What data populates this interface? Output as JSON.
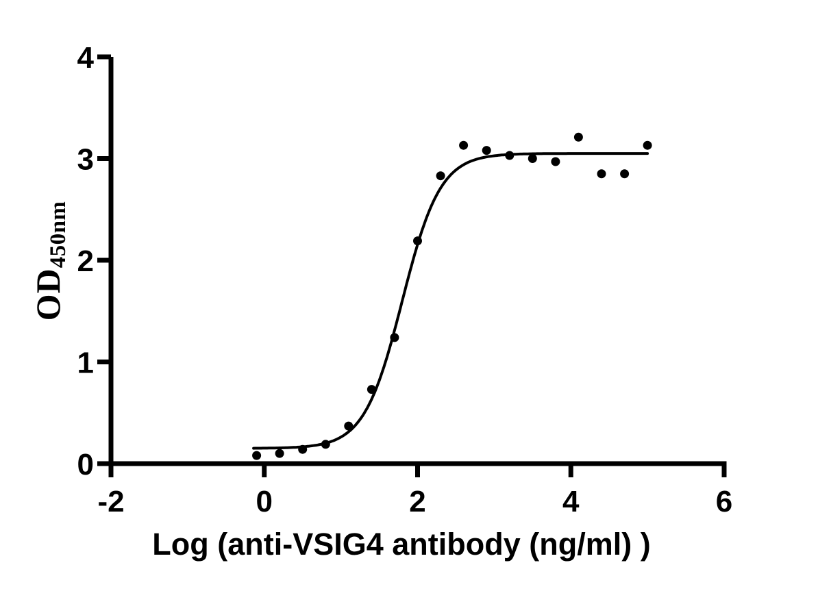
{
  "figure": {
    "background": "#ffffff",
    "ink_color": "#000000",
    "description": "Sigmoidal antibody binding curve (ELISA activity plot)"
  },
  "chart_data": {
    "type": "scatter",
    "subtype": "sigmoidal-dose-response-with-fit",
    "title": "",
    "xlabel": "Log (anti-VSIG4 antibody (ng/ml) )",
    "ylabel": "OD450nm",
    "ylabel_main": "OD",
    "ylabel_sub": "450nm",
    "xlim": [
      -2,
      6
    ],
    "ylim": [
      0,
      4
    ],
    "xticks": [
      -2,
      0,
      2,
      4,
      6
    ],
    "xtick_labels": [
      "-2",
      "0",
      "2",
      "4",
      "6"
    ],
    "yticks": [
      0,
      1,
      2,
      3,
      4
    ],
    "ytick_labels": [
      "0",
      "1",
      "2",
      "3",
      "4"
    ],
    "grid": false,
    "legend": "none",
    "marker_radius_px": 6.5,
    "series": [
      {
        "name": "OD450 measurements",
        "marker": "filled-circle",
        "color": "#000000",
        "x": [
          -0.1,
          0.2,
          0.5,
          0.8,
          1.1,
          1.4,
          1.7,
          2.0,
          2.3,
          2.6,
          2.9,
          3.2,
          3.5,
          3.8,
          4.1,
          4.4,
          4.7,
          5.0
        ],
        "y": [
          0.08,
          0.1,
          0.14,
          0.19,
          0.37,
          0.73,
          1.24,
          2.19,
          2.83,
          3.13,
          3.08,
          3.03,
          3.0,
          2.97,
          3.21,
          2.85,
          2.85,
          3.13
        ]
      }
    ],
    "fit_curve": {
      "model": "four-parameter-logistic",
      "bottom": 0.15,
      "top": 3.05,
      "log_ec50": 1.8,
      "hill_slope": 1.75,
      "x_range": [
        -0.14,
        5.0
      ],
      "color": "#000000",
      "stroke_width_px": 4
    }
  }
}
